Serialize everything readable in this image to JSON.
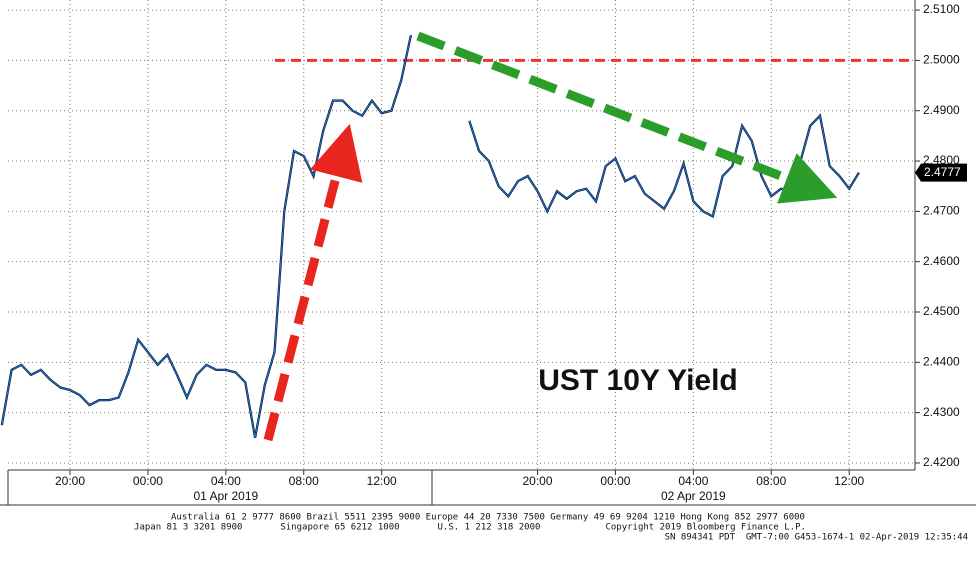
{
  "chart_data": {
    "type": "line",
    "annotation": "UST 10Y Yield",
    "categories": [
      null,
      null,
      null,
      null,
      null,
      null,
      null,
      "20:00",
      null,
      null,
      null,
      null,
      null,
      null,
      null,
      "00:00",
      null,
      null,
      null,
      null,
      null,
      null,
      null,
      "04:00",
      null,
      null,
      null,
      null,
      null,
      null,
      null,
      "08:00",
      null,
      null,
      null,
      null,
      null,
      null,
      null,
      "12:00",
      null,
      null,
      null,
      null,
      null,
      null,
      null,
      null,
      null,
      null,
      null,
      null,
      null,
      null,
      null,
      "20:00",
      null,
      null,
      null,
      null,
      null,
      null,
      null,
      "00:00",
      null,
      null,
      null,
      null,
      null,
      null,
      null,
      "04:00",
      null,
      null,
      null,
      null,
      null,
      null,
      null,
      "08:00",
      null,
      null,
      null,
      null,
      null,
      null,
      null,
      "12:00",
      null
    ],
    "date_labels": [
      "01 Apr 2019",
      "02 Apr 2019"
    ],
    "color": "#1a6fd6",
    "values": [
      2.4275,
      2.4385,
      2.4395,
      2.4375,
      2.4385,
      2.4365,
      2.435,
      2.4345,
      2.4335,
      2.4315,
      2.4325,
      2.4325,
      2.433,
      2.438,
      2.4445,
      2.442,
      2.4395,
      2.4415,
      2.4375,
      2.433,
      2.4375,
      2.4395,
      2.4385,
      2.4385,
      2.438,
      2.436,
      2.425,
      2.4355,
      2.442,
      2.47,
      2.482,
      2.481,
      2.477,
      2.486,
      2.492,
      2.492,
      2.49,
      2.489,
      2.492,
      2.4895,
      2.49,
      2.496,
      2.505,
      null,
      null,
      null,
      null,
      null,
      2.488,
      2.482,
      2.48,
      2.475,
      2.473,
      2.476,
      2.477,
      2.474,
      2.47,
      2.474,
      2.4725,
      2.474,
      2.4745,
      2.472,
      2.479,
      2.4805,
      2.476,
      2.477,
      2.4735,
      2.472,
      2.4705,
      2.474,
      2.4795,
      2.472,
      2.47,
      2.469,
      2.477,
      2.479,
      2.487,
      2.484,
      2.477,
      2.473,
      2.4745,
      2.474,
      2.48,
      2.487,
      2.489,
      2.479,
      2.477,
      2.4745,
      2.4777
    ],
    "last_value": {
      "value": 2.4777,
      "label": "2.4777"
    },
    "reference_line": {
      "value": 2.5,
      "color": "#e8362f"
    },
    "ylim": [
      2.4186,
      2.512
    ],
    "yticks": [
      {
        "value": 2.42,
        "label": "2.4200"
      },
      {
        "value": 2.43,
        "label": "2.4300"
      },
      {
        "value": 2.44,
        "label": "2.4400"
      },
      {
        "value": 2.45,
        "label": "2.4500"
      },
      {
        "value": 2.46,
        "label": "2.4600"
      },
      {
        "value": 2.47,
        "label": "2.4700"
      },
      {
        "value": 2.48,
        "label": "2.4800"
      },
      {
        "value": 2.49,
        "label": "2.4900"
      },
      {
        "value": 2.5,
        "label": "2.5000"
      },
      {
        "value": 2.51,
        "label": "2.5100"
      }
    ],
    "grid": true,
    "footer": [
      "Australia 61 2 9777 8600 Brazil 5511 2395 9000 Europe 44 20 7330 7500 Germany 49 69 9204 1210 Hong Kong 852 2977 6000",
      "Japan 81 3 3201 8900       Singapore 65 6212 1000       U.S. 1 212 318 2000            Copyright 2019 Bloomberg Finance L.P.",
      "SN 894341 PDT  GMT-7:00 G453-1674-1 02-Apr-2019 12:35:44"
    ]
  }
}
